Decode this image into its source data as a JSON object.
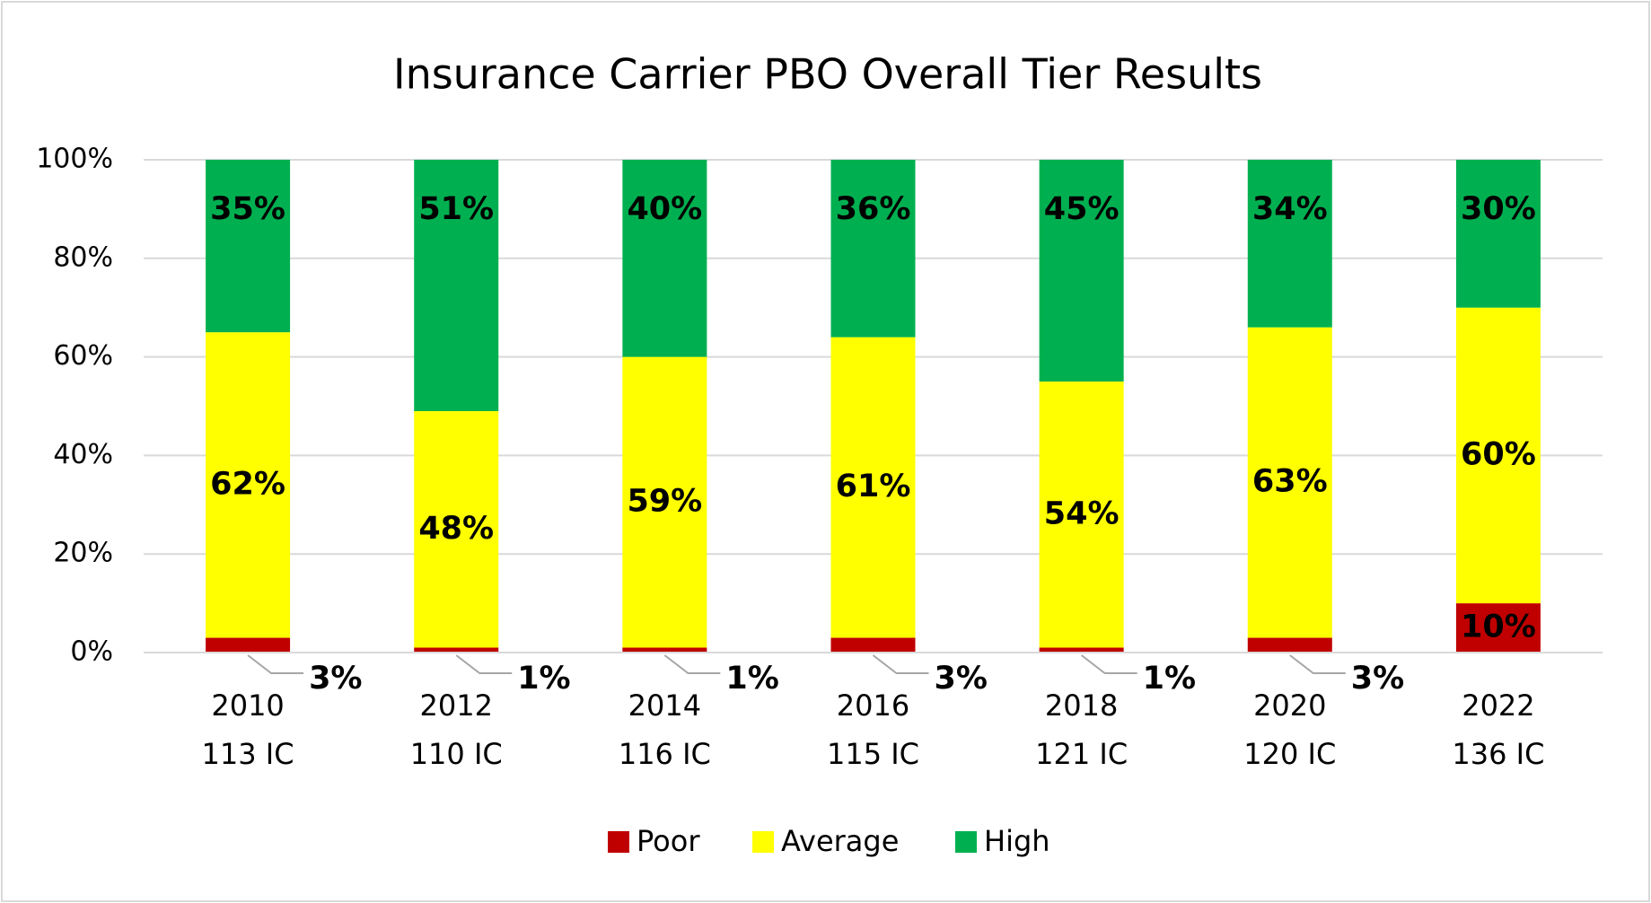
{
  "chart_data": {
    "type": "stacked_bar",
    "title": "Insurance Carrier PBO Overall Tier Results",
    "categories": [
      [
        "2010",
        "113 IC"
      ],
      [
        "2012",
        "110 IC"
      ],
      [
        "2014",
        "116 IC"
      ],
      [
        "2016",
        "115 IC"
      ],
      [
        "2018",
        "121 IC"
      ],
      [
        "2020",
        "120 IC"
      ],
      [
        "2022",
        "136 IC"
      ]
    ],
    "series": [
      {
        "name": "Poor",
        "color": "#c00000",
        "values": [
          3,
          1,
          1,
          3,
          1,
          3,
          10
        ],
        "value_labels": [
          "3%",
          "1%",
          "1%",
          "3%",
          "1%",
          "3%",
          "10%"
        ]
      },
      {
        "name": "Average",
        "color": "#ffff00",
        "values": [
          62,
          48,
          59,
          61,
          54,
          63,
          60
        ],
        "value_labels": [
          "62%",
          "48%",
          "59%",
          "61%",
          "54%",
          "63%",
          "60%"
        ]
      },
      {
        "name": "High",
        "color": "#00b050",
        "values": [
          35,
          51,
          40,
          36,
          45,
          34,
          30
        ],
        "value_labels": [
          "35%",
          "51%",
          "40%",
          "36%",
          "45%",
          "34%",
          "30%"
        ]
      }
    ],
    "ylim": [
      0,
      100
    ],
    "yticks": [
      {
        "value": 0,
        "label": "0%"
      },
      {
        "value": 20,
        "label": "20%"
      },
      {
        "value": 40,
        "label": "40%"
      },
      {
        "value": 60,
        "label": "60%"
      },
      {
        "value": 80,
        "label": "80%"
      },
      {
        "value": 100,
        "label": "100%"
      }
    ],
    "grid": true,
    "legend": "bottom"
  }
}
